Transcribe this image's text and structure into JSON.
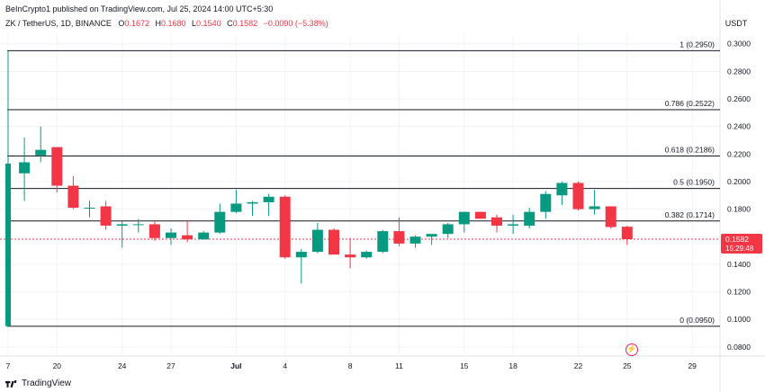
{
  "header": {
    "published": "BeInCrypto1 published on TradingView.com, Jul 25, 2024 14:00 UTC+5:30",
    "symbol": "ZK / TetherUS, 1D, BINANCE",
    "o_label": "O",
    "o_value": "0.1672",
    "h_label": "H",
    "h_value": "0.1680",
    "l_label": "L",
    "l_value": "0.1540",
    "c_label": "C",
    "c_value": "0.1582",
    "change": "−0.0090 (−5.38%)",
    "currency": "USDT"
  },
  "branding": {
    "name": "TradingView"
  },
  "chart_data": {
    "type": "candlestick",
    "y_ticks": [
      "0.3000",
      "0.2800",
      "0.2600",
      "0.2400",
      "0.2200",
      "0.2000",
      "0.1800",
      "0.1600",
      "0.1400",
      "0.1200",
      "0.1000",
      "0.0800"
    ],
    "x_ticks": [
      "7",
      "20",
      "24",
      "27",
      "Jul",
      "4",
      "8",
      "11",
      "15",
      "18",
      "22",
      "25",
      "29"
    ],
    "ylim": [
      0.074,
      0.307
    ],
    "last_price": {
      "value": "0.1582",
      "countdown": "15:29:48"
    },
    "fib_levels": [
      {
        "label": "1 (0.2950)",
        "value": 0.295
      },
      {
        "label": "0.786 (0.2522)",
        "value": 0.2522
      },
      {
        "label": "0.618 (0.2186)",
        "value": 0.2186
      },
      {
        "label": "0.5 (0.1950)",
        "value": 0.195
      },
      {
        "label": "0.382 (0.1714)",
        "value": 0.1714
      },
      {
        "label": "0 (0.0950)",
        "value": 0.095
      }
    ],
    "colors": {
      "up": "#089981",
      "down": "#f23645",
      "fib": "#131722",
      "grid": "#f0f3fa"
    },
    "candles": [
      {
        "date": "Jun 17",
        "o": 0.095,
        "h": 0.295,
        "l": 0.095,
        "c": 0.213
      },
      {
        "date": "Jun 18",
        "o": 0.206,
        "h": 0.232,
        "l": 0.186,
        "c": 0.214
      },
      {
        "date": "Jun 19",
        "o": 0.219,
        "h": 0.24,
        "l": 0.214,
        "c": 0.223
      },
      {
        "date": "Jun 20",
        "o": 0.225,
        "h": 0.225,
        "l": 0.192,
        "c": 0.197
      },
      {
        "date": "Jun 21",
        "o": 0.197,
        "h": 0.204,
        "l": 0.18,
        "c": 0.181
      },
      {
        "date": "Jun 22",
        "o": 0.181,
        "h": 0.186,
        "l": 0.174,
        "c": 0.181
      },
      {
        "date": "Jun 23",
        "o": 0.182,
        "h": 0.186,
        "l": 0.165,
        "c": 0.168
      },
      {
        "date": "Jun 24",
        "o": 0.168,
        "h": 0.171,
        "l": 0.152,
        "c": 0.169
      },
      {
        "date": "Jun 25",
        "o": 0.169,
        "h": 0.173,
        "l": 0.163,
        "c": 0.169
      },
      {
        "date": "Jun 26",
        "o": 0.169,
        "h": 0.172,
        "l": 0.157,
        "c": 0.159
      },
      {
        "date": "Jun 27",
        "o": 0.159,
        "h": 0.166,
        "l": 0.154,
        "c": 0.163
      },
      {
        "date": "Jun 28",
        "o": 0.161,
        "h": 0.172,
        "l": 0.156,
        "c": 0.158
      },
      {
        "date": "Jun 29",
        "o": 0.158,
        "h": 0.164,
        "l": 0.158,
        "c": 0.163
      },
      {
        "date": "Jun 30",
        "o": 0.163,
        "h": 0.184,
        "l": 0.162,
        "c": 0.178
      },
      {
        "date": "Jul 1",
        "o": 0.178,
        "h": 0.194,
        "l": 0.177,
        "c": 0.184
      },
      {
        "date": "Jul 2",
        "o": 0.184,
        "h": 0.186,
        "l": 0.175,
        "c": 0.185
      },
      {
        "date": "Jul 3",
        "o": 0.185,
        "h": 0.191,
        "l": 0.175,
        "c": 0.189
      },
      {
        "date": "Jul 4",
        "o": 0.189,
        "h": 0.19,
        "l": 0.144,
        "c": 0.145
      },
      {
        "date": "Jul 5",
        "o": 0.145,
        "h": 0.151,
        "l": 0.126,
        "c": 0.149
      },
      {
        "date": "Jul 6",
        "o": 0.149,
        "h": 0.17,
        "l": 0.148,
        "c": 0.165
      },
      {
        "date": "Jul 7",
        "o": 0.165,
        "h": 0.166,
        "l": 0.147,
        "c": 0.147
      },
      {
        "date": "Jul 8",
        "o": 0.147,
        "h": 0.159,
        "l": 0.137,
        "c": 0.145
      },
      {
        "date": "Jul 9",
        "o": 0.145,
        "h": 0.15,
        "l": 0.144,
        "c": 0.149
      },
      {
        "date": "Jul 10",
        "o": 0.149,
        "h": 0.165,
        "l": 0.148,
        "c": 0.164
      },
      {
        "date": "Jul 11",
        "o": 0.164,
        "h": 0.174,
        "l": 0.153,
        "c": 0.155
      },
      {
        "date": "Jul 12",
        "o": 0.155,
        "h": 0.161,
        "l": 0.152,
        "c": 0.16
      },
      {
        "date": "Jul 13",
        "o": 0.16,
        "h": 0.161,
        "l": 0.154,
        "c": 0.162
      },
      {
        "date": "Jul 14",
        "o": 0.162,
        "h": 0.17,
        "l": 0.159,
        "c": 0.169
      },
      {
        "date": "Jul 15",
        "o": 0.169,
        "h": 0.178,
        "l": 0.163,
        "c": 0.178
      },
      {
        "date": "Jul 16",
        "o": 0.178,
        "h": 0.178,
        "l": 0.173,
        "c": 0.173
      },
      {
        "date": "Jul 17",
        "o": 0.174,
        "h": 0.176,
        "l": 0.163,
        "c": 0.168
      },
      {
        "date": "Jul 18",
        "o": 0.168,
        "h": 0.176,
        "l": 0.162,
        "c": 0.169
      },
      {
        "date": "Jul 19",
        "o": 0.168,
        "h": 0.181,
        "l": 0.166,
        "c": 0.178
      },
      {
        "date": "Jul 20",
        "o": 0.178,
        "h": 0.193,
        "l": 0.173,
        "c": 0.191
      },
      {
        "date": "Jul 21",
        "o": 0.19,
        "h": 0.2,
        "l": 0.183,
        "c": 0.199
      },
      {
        "date": "Jul 22",
        "o": 0.199,
        "h": 0.2,
        "l": 0.179,
        "c": 0.18
      },
      {
        "date": "Jul 23",
        "o": 0.18,
        "h": 0.194,
        "l": 0.176,
        "c": 0.182
      },
      {
        "date": "Jul 24",
        "o": 0.182,
        "h": 0.182,
        "l": 0.166,
        "c": 0.167
      },
      {
        "date": "Jul 25",
        "o": 0.1672,
        "h": 0.168,
        "l": 0.154,
        "c": 0.1582
      }
    ]
  }
}
